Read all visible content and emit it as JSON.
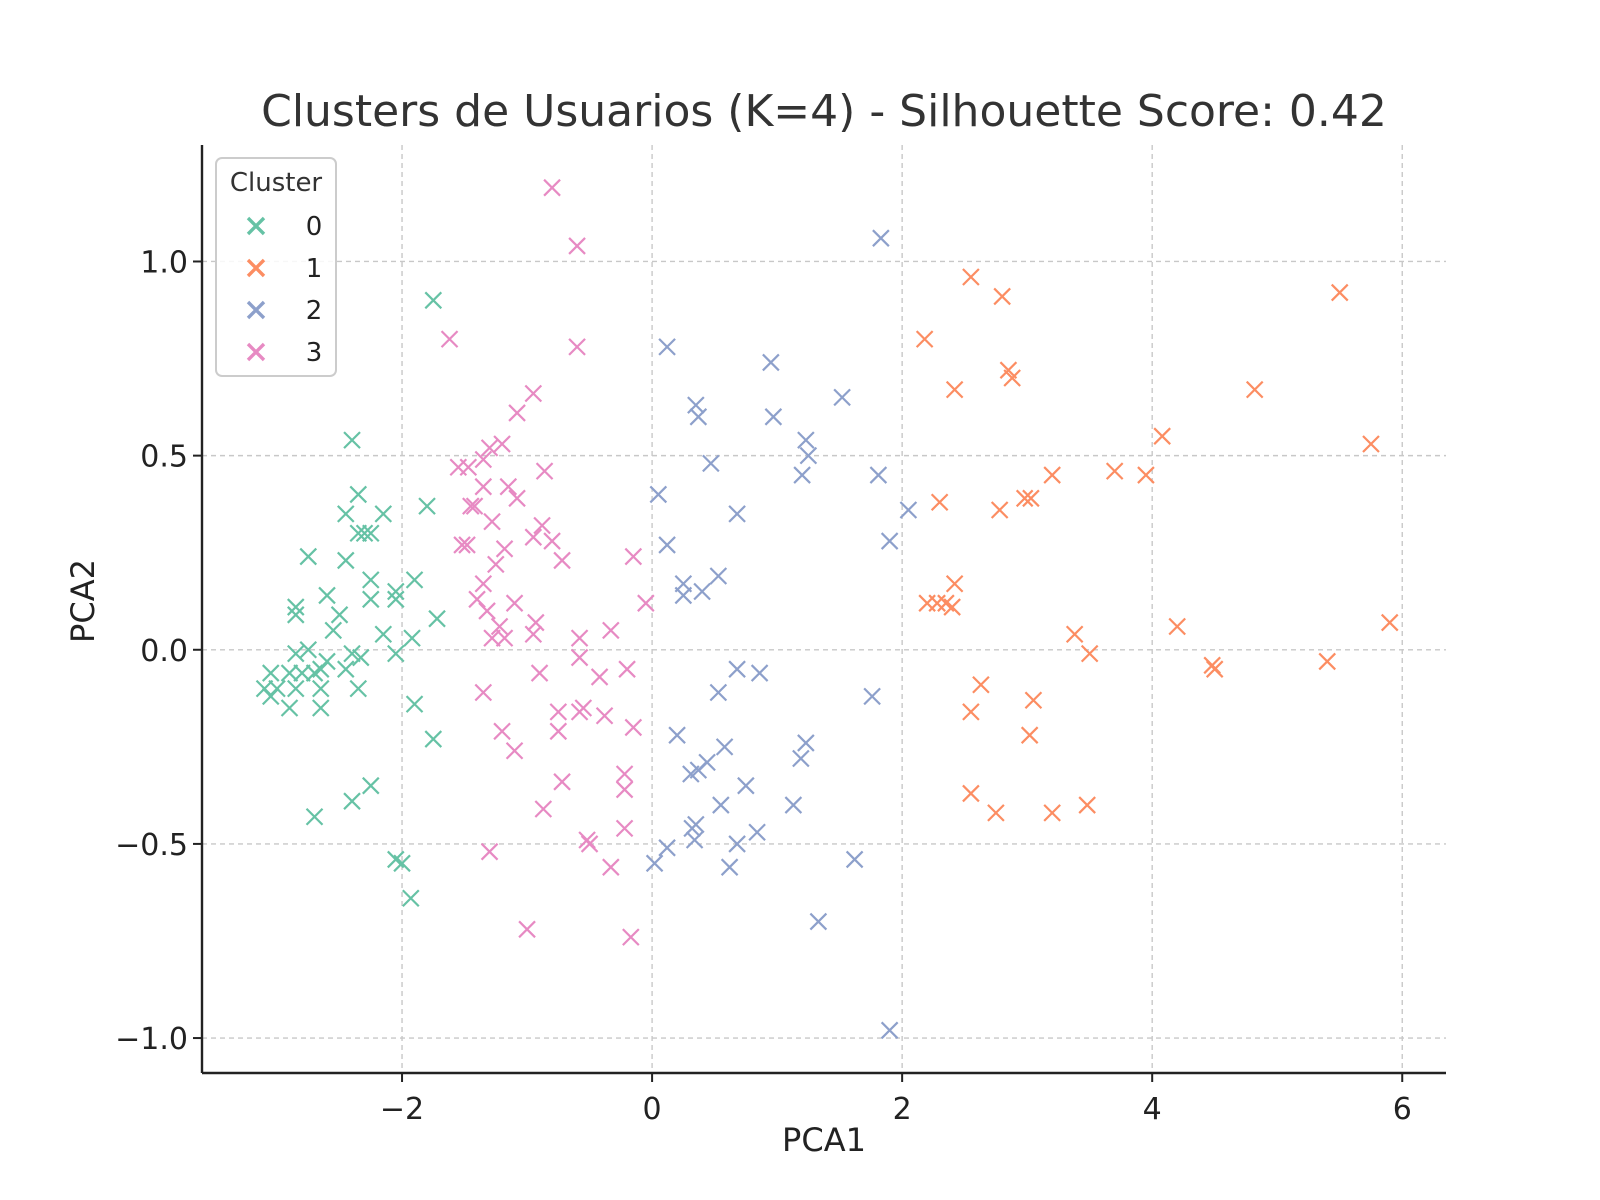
{
  "chart_data": {
    "type": "scatter",
    "title": "Clusters de Usuarios (K=4) - Silhouette Score: 0.42",
    "xlabel": "PCA1",
    "ylabel": "PCA2",
    "xlim": [
      -3.6,
      6.35
    ],
    "ylim": [
      -1.09,
      1.3
    ],
    "xticks": [
      -2,
      0,
      2,
      4,
      6
    ],
    "xtick_labels": [
      "−2",
      "0",
      "2",
      "4",
      "6"
    ],
    "yticks": [
      -1.0,
      -0.5,
      0.0,
      0.5,
      1.0
    ],
    "ytick_labels": [
      "−1.0",
      "−0.5",
      "0.0",
      "0.5",
      "1.0"
    ],
    "grid": true,
    "marker": "x",
    "legend": {
      "title": "Cluster",
      "location": "upper-left"
    },
    "series": [
      {
        "name": "0",
        "color": "#66c2a5",
        "points": [
          [
            -1.75,
            0.9
          ],
          [
            -2.4,
            0.54
          ],
          [
            -2.35,
            0.4
          ],
          [
            -2.45,
            0.35
          ],
          [
            -2.35,
            0.3
          ],
          [
            -2.15,
            0.35
          ],
          [
            -2.25,
            0.3
          ],
          [
            -2.3,
            0.3
          ],
          [
            -1.8,
            0.37
          ],
          [
            -2.45,
            0.23
          ],
          [
            -2.75,
            0.24
          ],
          [
            -2.85,
            0.11
          ],
          [
            -2.85,
            0.09
          ],
          [
            -2.6,
            0.14
          ],
          [
            -2.25,
            0.18
          ],
          [
            -2.25,
            0.13
          ],
          [
            -2.05,
            0.15
          ],
          [
            -2.05,
            0.13
          ],
          [
            -1.9,
            0.18
          ],
          [
            -2.5,
            0.09
          ],
          [
            -2.55,
            0.05
          ],
          [
            -1.72,
            0.08
          ],
          [
            -2.15,
            0.04
          ],
          [
            -1.92,
            0.03
          ],
          [
            -2.75,
            0.0
          ],
          [
            -2.85,
            -0.01
          ],
          [
            -2.4,
            -0.01
          ],
          [
            -2.33,
            -0.02
          ],
          [
            -2.05,
            -0.01
          ],
          [
            -2.45,
            -0.05
          ],
          [
            -2.6,
            -0.03
          ],
          [
            -2.65,
            -0.05
          ],
          [
            -2.7,
            -0.06
          ],
          [
            -2.8,
            -0.06
          ],
          [
            -2.9,
            -0.06
          ],
          [
            -3.05,
            -0.06
          ],
          [
            -3.1,
            -0.1
          ],
          [
            -3.0,
            -0.1
          ],
          [
            -2.85,
            -0.1
          ],
          [
            -2.65,
            -0.1
          ],
          [
            -2.35,
            -0.1
          ],
          [
            -3.05,
            -0.12
          ],
          [
            -2.9,
            -0.15
          ],
          [
            -2.65,
            -0.15
          ],
          [
            -1.9,
            -0.14
          ],
          [
            -1.75,
            -0.23
          ],
          [
            -2.4,
            -0.39
          ],
          [
            -2.25,
            -0.35
          ],
          [
            -2.7,
            -0.43
          ],
          [
            -2.05,
            -0.54
          ],
          [
            -2.0,
            -0.55
          ],
          [
            -1.93,
            -0.64
          ]
        ]
      },
      {
        "name": "1",
        "color": "#fc8d62",
        "points": [
          [
            2.55,
            0.96
          ],
          [
            2.8,
            0.91
          ],
          [
            2.18,
            0.8
          ],
          [
            2.85,
            0.72
          ],
          [
            2.88,
            0.7
          ],
          [
            2.42,
            0.67
          ],
          [
            5.5,
            0.92
          ],
          [
            4.82,
            0.67
          ],
          [
            4.08,
            0.55
          ],
          [
            5.75,
            0.53
          ],
          [
            3.2,
            0.45
          ],
          [
            3.7,
            0.46
          ],
          [
            3.95,
            0.45
          ],
          [
            2.3,
            0.38
          ],
          [
            2.78,
            0.36
          ],
          [
            2.98,
            0.39
          ],
          [
            3.03,
            0.39
          ],
          [
            2.42,
            0.17
          ],
          [
            2.2,
            0.12
          ],
          [
            2.28,
            0.12
          ],
          [
            2.35,
            0.12
          ],
          [
            2.4,
            0.11
          ],
          [
            3.38,
            0.04
          ],
          [
            3.5,
            -0.01
          ],
          [
            4.2,
            0.06
          ],
          [
            5.9,
            0.07
          ],
          [
            4.48,
            -0.04
          ],
          [
            4.5,
            -0.05
          ],
          [
            5.4,
            -0.03
          ],
          [
            2.63,
            -0.09
          ],
          [
            2.55,
            -0.16
          ],
          [
            3.05,
            -0.13
          ],
          [
            3.02,
            -0.22
          ],
          [
            2.55,
            -0.37
          ],
          [
            2.75,
            -0.42
          ],
          [
            3.2,
            -0.42
          ],
          [
            3.48,
            -0.4
          ]
        ]
      },
      {
        "name": "2",
        "color": "#8da0cb",
        "points": [
          [
            1.83,
            1.06
          ],
          [
            0.12,
            0.78
          ],
          [
            0.95,
            0.74
          ],
          [
            1.52,
            0.65
          ],
          [
            0.35,
            0.63
          ],
          [
            0.37,
            0.6
          ],
          [
            0.97,
            0.6
          ],
          [
            1.23,
            0.54
          ],
          [
            1.25,
            0.5
          ],
          [
            0.47,
            0.48
          ],
          [
            1.2,
            0.45
          ],
          [
            1.81,
            0.45
          ],
          [
            2.05,
            0.36
          ],
          [
            0.05,
            0.4
          ],
          [
            0.68,
            0.35
          ],
          [
            0.12,
            0.27
          ],
          [
            1.9,
            0.28
          ],
          [
            0.53,
            0.19
          ],
          [
            0.25,
            0.17
          ],
          [
            0.4,
            0.15
          ],
          [
            0.25,
            0.14
          ],
          [
            0.68,
            -0.05
          ],
          [
            0.86,
            -0.06
          ],
          [
            0.53,
            -0.11
          ],
          [
            1.76,
            -0.12
          ],
          [
            0.2,
            -0.22
          ],
          [
            0.58,
            -0.25
          ],
          [
            1.23,
            -0.24
          ],
          [
            0.44,
            -0.29
          ],
          [
            0.37,
            -0.31
          ],
          [
            0.31,
            -0.32
          ],
          [
            1.19,
            -0.28
          ],
          [
            0.75,
            -0.35
          ],
          [
            1.13,
            -0.4
          ],
          [
            0.55,
            -0.4
          ],
          [
            0.35,
            -0.45
          ],
          [
            0.32,
            -0.46
          ],
          [
            0.34,
            -0.49
          ],
          [
            0.84,
            -0.47
          ],
          [
            0.68,
            -0.5
          ],
          [
            0.12,
            -0.51
          ],
          [
            0.02,
            -0.55
          ],
          [
            0.62,
            -0.56
          ],
          [
            1.62,
            -0.54
          ],
          [
            1.33,
            -0.7
          ],
          [
            1.9,
            -0.98
          ]
        ]
      },
      {
        "name": "3",
        "color": "#e78ac3",
        "points": [
          [
            -0.8,
            1.19
          ],
          [
            -0.6,
            1.04
          ],
          [
            -1.62,
            0.8
          ],
          [
            -0.6,
            0.78
          ],
          [
            -0.95,
            0.66
          ],
          [
            -1.08,
            0.61
          ],
          [
            -1.2,
            0.53
          ],
          [
            -1.3,
            0.52
          ],
          [
            -1.35,
            0.49
          ],
          [
            -1.55,
            0.47
          ],
          [
            -1.47,
            0.47
          ],
          [
            -0.86,
            0.46
          ],
          [
            -1.35,
            0.42
          ],
          [
            -1.15,
            0.42
          ],
          [
            -1.08,
            0.39
          ],
          [
            -1.45,
            0.37
          ],
          [
            -1.42,
            0.37
          ],
          [
            -1.28,
            0.33
          ],
          [
            -0.88,
            0.32
          ],
          [
            -0.95,
            0.29
          ],
          [
            -0.8,
            0.28
          ],
          [
            -1.52,
            0.27
          ],
          [
            -1.48,
            0.27
          ],
          [
            -1.18,
            0.26
          ],
          [
            -0.72,
            0.23
          ],
          [
            -0.15,
            0.24
          ],
          [
            -1.25,
            0.22
          ],
          [
            -1.35,
            0.17
          ],
          [
            -1.4,
            0.13
          ],
          [
            -1.1,
            0.12
          ],
          [
            -0.05,
            0.12
          ],
          [
            -1.32,
            0.1
          ],
          [
            -0.93,
            0.07
          ],
          [
            -0.33,
            0.05
          ],
          [
            -0.58,
            0.03
          ],
          [
            -0.95,
            0.04
          ],
          [
            -1.22,
            0.06
          ],
          [
            -1.28,
            0.03
          ],
          [
            -1.18,
            0.03
          ],
          [
            -0.58,
            -0.02
          ],
          [
            -0.9,
            -0.06
          ],
          [
            -0.42,
            -0.07
          ],
          [
            -0.2,
            -0.05
          ],
          [
            -1.35,
            -0.11
          ],
          [
            -0.75,
            -0.16
          ],
          [
            -0.55,
            -0.15
          ],
          [
            -0.58,
            -0.16
          ],
          [
            -0.38,
            -0.17
          ],
          [
            -0.15,
            -0.2
          ],
          [
            -0.75,
            -0.21
          ],
          [
            -1.2,
            -0.21
          ],
          [
            -1.1,
            -0.26
          ],
          [
            -0.72,
            -0.34
          ],
          [
            -0.22,
            -0.32
          ],
          [
            -0.22,
            -0.36
          ],
          [
            -0.87,
            -0.41
          ],
          [
            -0.22,
            -0.46
          ],
          [
            -0.52,
            -0.49
          ],
          [
            -0.5,
            -0.5
          ],
          [
            -1.3,
            -0.52
          ],
          [
            -0.33,
            -0.56
          ],
          [
            -1.0,
            -0.72
          ],
          [
            -0.17,
            -0.74
          ]
        ]
      }
    ]
  }
}
